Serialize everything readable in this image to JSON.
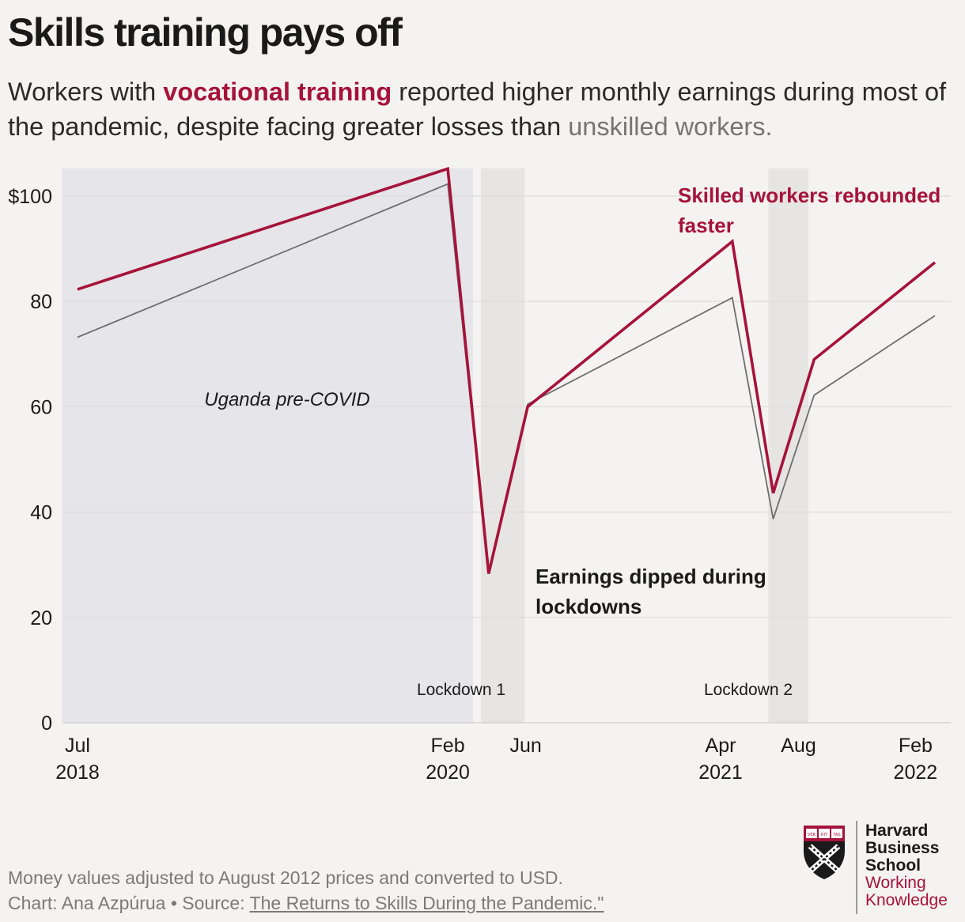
{
  "header": {
    "title": "Skills training pays off",
    "subtitle_pre": "Workers with ",
    "subtitle_skilled": "vocational training",
    "subtitle_mid": " reported higher monthly earnings during most of the pandemic, despite facing greater losses than ",
    "subtitle_unskilled": "unskilled workers."
  },
  "chart_data": {
    "type": "line",
    "title": "Skills training pays off",
    "xlabel": "",
    "ylabel": "",
    "ylim": [
      0,
      105
    ],
    "y_ticks": [
      0,
      20,
      40,
      60,
      80,
      100
    ],
    "y_tick_labels": [
      "0",
      "20",
      "40",
      "60",
      "80",
      "$100"
    ],
    "x_start": "2018-07",
    "x_end": "2022-02",
    "x_ticks": [
      {
        "t": 0,
        "label1": "Jul",
        "label2": "2018"
      },
      {
        "t": 19,
        "label1": "Feb",
        "label2": "2020"
      },
      {
        "t": 23,
        "label1": "Jun",
        "label2": ""
      },
      {
        "t": 33,
        "label1": "Apr",
        "label2": "2021"
      },
      {
        "t": 37,
        "label1": "Aug",
        "label2": ""
      },
      {
        "t": 43,
        "label1": "Feb",
        "label2": "2022"
      }
    ],
    "series": [
      {
        "name": "Vocational training (skilled)",
        "color": "#a6133a",
        "points": [
          [
            0,
            82.3
          ],
          [
            19,
            105.2
          ],
          [
            21.1,
            28.3
          ],
          [
            23.1,
            60.0
          ],
          [
            33.6,
            91.4
          ],
          [
            35.7,
            43.6
          ],
          [
            37.8,
            69.0
          ],
          [
            44,
            87.4
          ]
        ]
      },
      {
        "name": "Unskilled",
        "color": "#6e6e6e",
        "points": [
          [
            0,
            73.2
          ],
          [
            19,
            102.3
          ],
          [
            21.1,
            28.3
          ],
          [
            23.1,
            60.5
          ],
          [
            33.6,
            80.7
          ],
          [
            35.7,
            38.7
          ],
          [
            37.8,
            62.2
          ],
          [
            44,
            77.3
          ]
        ]
      }
    ],
    "shaded_regions": [
      {
        "name": "pre-covid",
        "t0": -0.8,
        "t1": 20.3,
        "label": "Uganda pre-COVID",
        "color": "#e6e5e9"
      },
      {
        "name": "lockdown-1",
        "t0": 20.7,
        "t1": 22.95,
        "label": "Lockdown 1",
        "color": "#e6e5e3"
      },
      {
        "name": "lockdown-2",
        "t0": 35.45,
        "t1": 37.5,
        "label": "Lockdown 2",
        "color": "#e6e5e3"
      }
    ],
    "annotations": [
      {
        "name": "annotation-rebound",
        "lines": [
          "Skilled workers rebounded",
          "faster"
        ],
        "color": "#a6133a"
      },
      {
        "name": "annotation-dip",
        "lines": [
          "Earnings dipped during",
          "lockdowns"
        ],
        "color": "#1a1a1a"
      }
    ]
  },
  "footer": {
    "note": "Money values adjusted to August 2012 prices and converted to USD.",
    "credit": "Chart: Ana Azpúrua • Source: ",
    "source": "The Returns to Skills During the Pandemic.\"",
    "logo_line1": "Harvard",
    "logo_line2": "Business",
    "logo_line3": "School",
    "logo_line4": "Working",
    "logo_line5": "Knowledge",
    "shield_text": "VERITAS",
    "colors": {
      "accent": "#a6133a",
      "unskilled": "#6e6e6e",
      "background": "#f4f3f1"
    }
  }
}
